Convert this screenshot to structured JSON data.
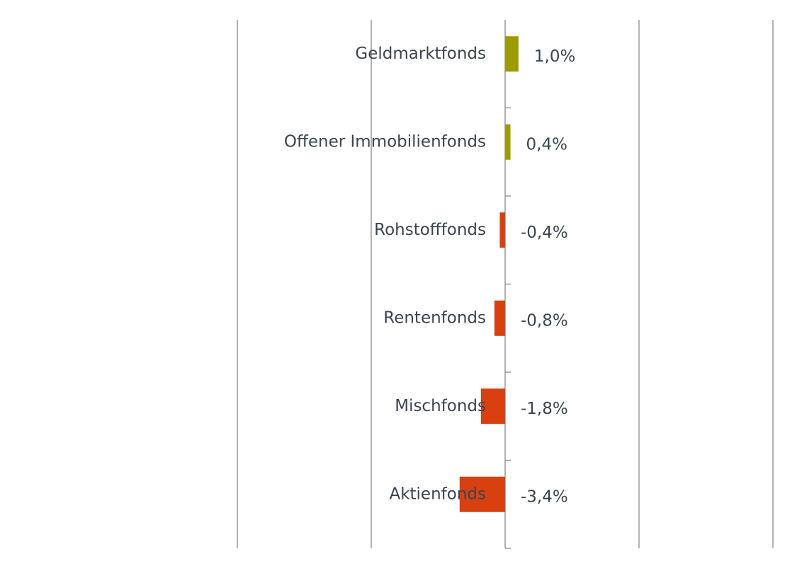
{
  "chart_data": {
    "type": "hbar",
    "categories": [
      "Geldmarktfonds",
      "Offener Immobilienfonds",
      "Rohstofffonds",
      "Rentenfonds",
      "Mischfonds",
      "Aktienfonds"
    ],
    "values": [
      1.0,
      0.4,
      -0.4,
      -0.8,
      -1.8,
      -3.4
    ],
    "value_labels": [
      "1,0%",
      "0,4%",
      "-0,4%",
      "-0,8%",
      "-1,8%",
      "-3,4%"
    ],
    "positive_color": "#9c9b00",
    "negative_color": "#d9400f",
    "xlim": [
      -20,
      20
    ],
    "xticks": [
      -20,
      -10,
      0,
      10,
      20
    ],
    "grid": true
  }
}
